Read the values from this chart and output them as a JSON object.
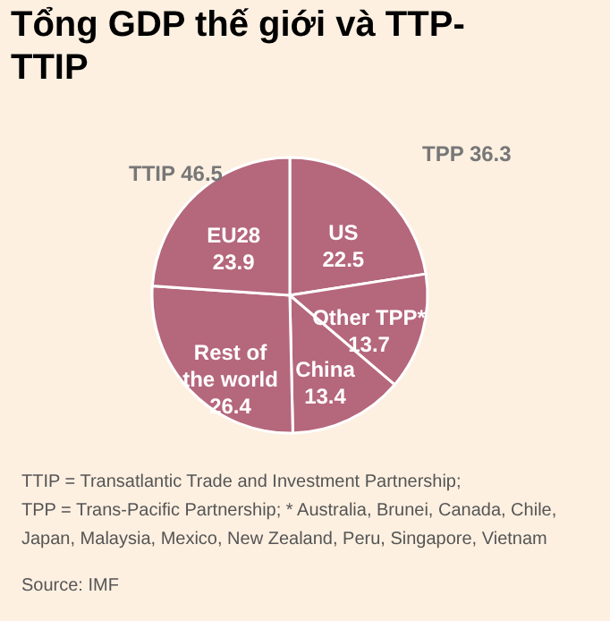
{
  "chart_data": {
    "type": "pie",
    "title": "Tổng GDP thế giới và TTP-TTIP",
    "categories": [
      "US",
      "Other TPP*",
      "China",
      "Rest of the world",
      "EU28"
    ],
    "values": [
      22.5,
      13.7,
      13.4,
      26.4,
      23.9
    ],
    "colors": [
      "#b5677c",
      "#b5677c",
      "#b5677c",
      "#b5677c",
      "#b5677c"
    ],
    "data_labels": true,
    "annotations": [
      "TTIP 46.5",
      "TPP 36.3",
      "TTIP = Transatlantic Trade and Investment Partnership;",
      "TPP = Trans-Pacific Partnership;  * Australia, Brunei, Canada, Chile,",
      "Japan, Malaysia, Mexico, New Zealand, Peru, Singapore, Vietnam",
      "Source: IMF"
    ]
  }
}
